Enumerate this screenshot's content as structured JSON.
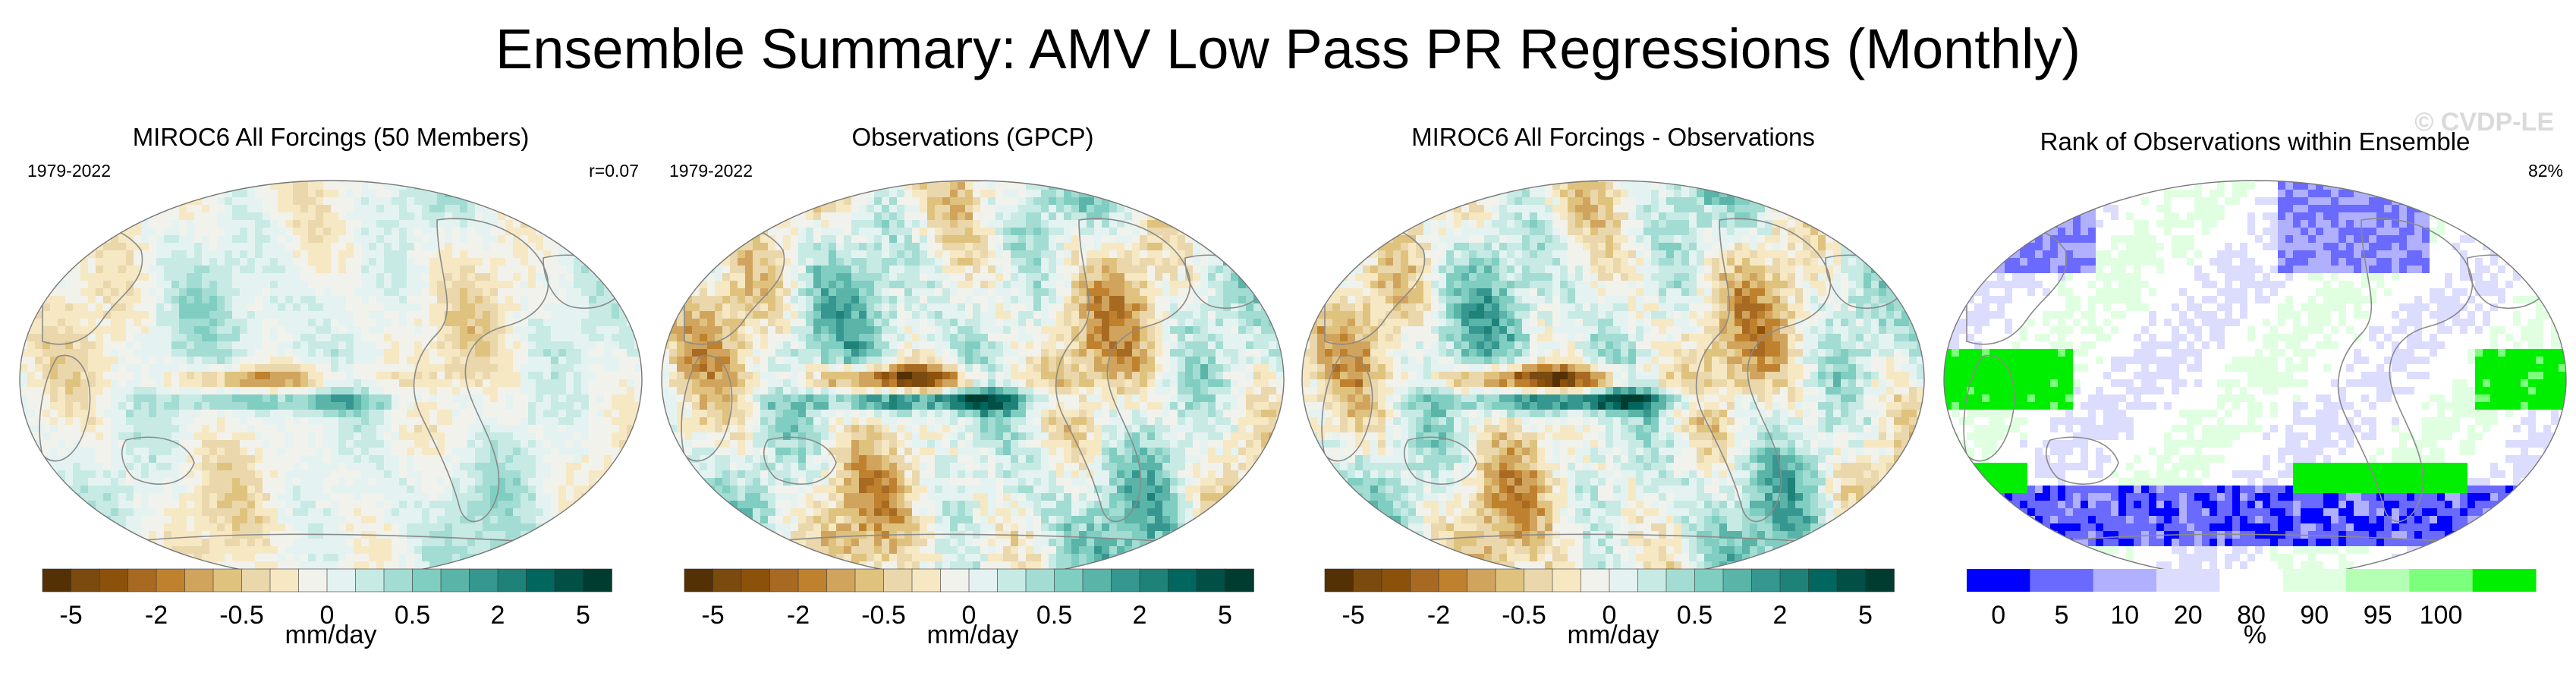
{
  "title": "Ensemble Summary: AMV Low Pass PR Regressions (Monthly)",
  "watermark": "© CVDP-LE",
  "colors": {
    "brbg": [
      "#543005",
      "#7a4a0f",
      "#8c510a",
      "#a86a22",
      "#bf812d",
      "#d1a45e",
      "#dfc27d",
      "#ead7ab",
      "#f6e8c3",
      "#f2f2ec",
      "#e4f3f1",
      "#c7eae5",
      "#a3dcd2",
      "#80cdc1",
      "#5ab4a8",
      "#35978f",
      "#1f8278",
      "#01665e",
      "#014f45",
      "#003c30"
    ],
    "rank": [
      "#0000ff",
      "#6a6aff",
      "#b0b0ff",
      "#dcdcff",
      "#ffffff",
      "#e0ffe0",
      "#b4ffb4",
      "#7cff7c",
      "#00ee00"
    ],
    "land_outline": "#8a8a8a"
  },
  "panels": [
    {
      "title": "MIROC6 All Forcings (50 Members)",
      "period": "1979-2022",
      "corner": "r=0.07",
      "units": "mm/day",
      "ticks": [
        "-5",
        "-2",
        "-0.5",
        "0",
        "0.5",
        "2",
        "5"
      ],
      "palette": "brbg",
      "map_style": "muted"
    },
    {
      "title": "Observations (GPCP)",
      "period": "1979-2022",
      "corner": "",
      "units": "mm/day",
      "ticks": [
        "-5",
        "-2",
        "-0.5",
        "0",
        "0.5",
        "2",
        "5"
      ],
      "palette": "brbg",
      "map_style": "strong"
    },
    {
      "title": "MIROC6 All Forcings - Observations",
      "period": "",
      "corner": "",
      "units": "mm/day",
      "ticks": [
        "-5",
        "-2",
        "-0.5",
        "0",
        "0.5",
        "2",
        "5"
      ],
      "palette": "brbg",
      "map_style": "strong"
    },
    {
      "title": "Rank of Observations within Ensemble",
      "period": "",
      "corner": "82%",
      "units": "%",
      "ticks": [
        "0",
        "5",
        "10",
        "20",
        "80",
        "90",
        "95",
        "100"
      ],
      "palette": "rank",
      "map_style": "rank"
    }
  ],
  "chart_data": [
    {
      "type": "heatmap",
      "title": "MIROC6 All Forcings (50 Members)",
      "subtitle": "1979-2022",
      "annotation": "r=0.07",
      "colorbar_label": "mm/day",
      "colorbar_ticks": [
        -5,
        -2,
        -0.5,
        0,
        0.5,
        2,
        5
      ],
      "projection": "Robinson, centered on Pacific"
    },
    {
      "type": "heatmap",
      "title": "Observations (GPCP)",
      "subtitle": "1979-2022",
      "colorbar_label": "mm/day",
      "colorbar_ticks": [
        -5,
        -2,
        -0.5,
        0,
        0.5,
        2,
        5
      ],
      "projection": "Robinson, centered on Pacific"
    },
    {
      "type": "heatmap",
      "title": "MIROC6 All Forcings - Observations",
      "colorbar_label": "mm/day",
      "colorbar_ticks": [
        -5,
        -2,
        -0.5,
        0,
        0.5,
        2,
        5
      ],
      "projection": "Robinson, centered on Pacific"
    },
    {
      "type": "heatmap",
      "title": "Rank of Observations within Ensemble",
      "annotation": "82%",
      "colorbar_label": "%",
      "colorbar_ticks": [
        0,
        5,
        10,
        20,
        80,
        90,
        95,
        100
      ],
      "projection": "Robinson, centered on Pacific"
    }
  ]
}
